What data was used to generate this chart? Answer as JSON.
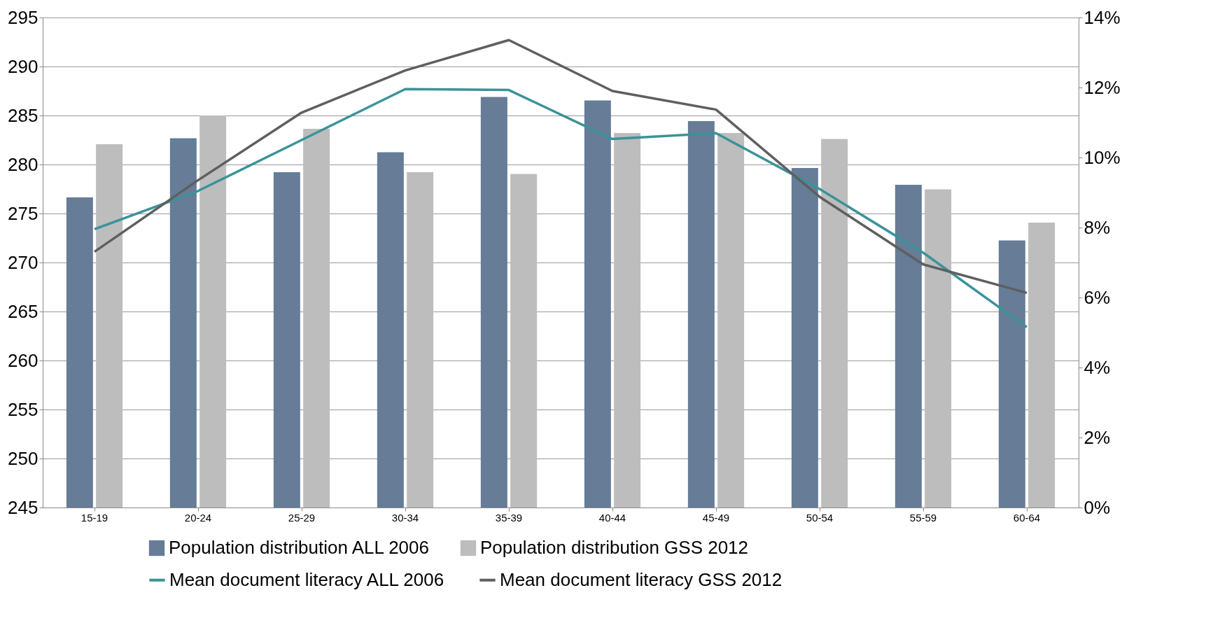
{
  "chart_data": {
    "type": "bar",
    "categories": [
      "15-19",
      "20-24",
      "25-29",
      "30-34",
      "35-39",
      "40-44",
      "45-49",
      "50-54",
      "55-59",
      "60-64"
    ],
    "series": [
      {
        "name": "Population distribution ALL 2006",
        "color": "#667c97",
        "axis": "y2",
        "values": [
          8.86,
          10.55,
          9.58,
          10.15,
          11.73,
          11.63,
          11.04,
          9.7,
          9.22,
          7.63
        ]
      },
      {
        "name": "Population distribution GSS 2012",
        "color": "#bdbdbd",
        "axis": "y2",
        "values": [
          10.38,
          11.2,
          10.82,
          9.58,
          9.53,
          10.7,
          10.7,
          10.53,
          9.09,
          8.14
        ]
      },
      {
        "name": "Mean document literacy ALL 2006",
        "color": "#3a9399",
        "type": "line",
        "values": [
          273.4,
          277.3,
          282.5,
          287.7,
          287.6,
          282.6,
          283.2,
          277.5,
          271.0,
          263.4
        ]
      },
      {
        "name": "Mean document literacy GSS 2012",
        "color": "#5f5f5f",
        "type": "line",
        "values": [
          271.1,
          278.4,
          285.3,
          289.6,
          292.7,
          287.5,
          285.6,
          276.7,
          269.8,
          266.9
        ]
      }
    ],
    "ylim": [
      245,
      295
    ],
    "yticks": [
      245,
      250,
      255,
      260,
      265,
      270,
      275,
      280,
      285,
      290,
      295
    ],
    "y2lim": [
      0,
      14
    ],
    "y2ticks": [
      {
        "value": 0,
        "label": "0%"
      },
      {
        "value": 2,
        "label": "2%"
      },
      {
        "value": 4,
        "label": "4%"
      },
      {
        "value": 6,
        "label": "6%"
      },
      {
        "value": 8,
        "label": "8%"
      },
      {
        "value": 10,
        "label": "10%"
      },
      {
        "value": 12,
        "label": "12%"
      },
      {
        "value": 14,
        "label": "14%"
      }
    ],
    "grid": "y",
    "legend": "bottom",
    "marker": "none",
    "line_style": "solid"
  }
}
